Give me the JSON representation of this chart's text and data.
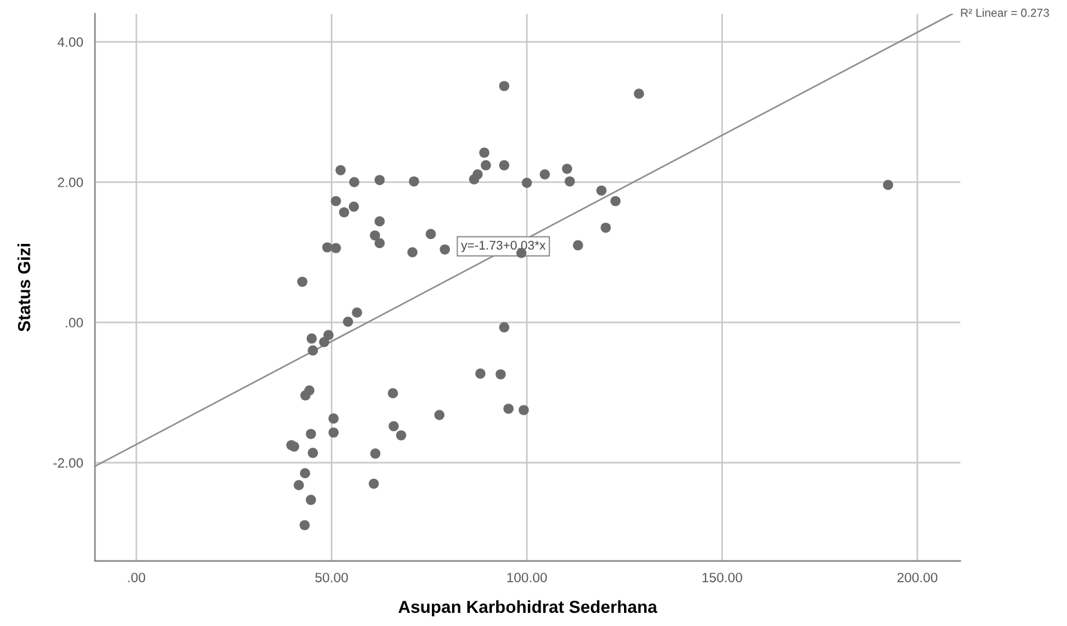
{
  "chart_data": {
    "type": "scatter",
    "xlabel": "Asupan Karbohidrat Sederhana",
    "ylabel": "Status Gizi",
    "xlim": [
      -10.6,
      211
    ],
    "ylim": [
      -3.4,
      4.4
    ],
    "xticks": [
      {
        "value": 0,
        "label": ".00"
      },
      {
        "value": 50,
        "label": "50.00"
      },
      {
        "value": 100,
        "label": "100.00"
      },
      {
        "value": 150,
        "label": "150.00"
      },
      {
        "value": 200,
        "label": "200.00"
      }
    ],
    "yticks": [
      {
        "value": -2,
        "label": "-2.00"
      },
      {
        "value": 0,
        "label": ".00"
      },
      {
        "value": 2,
        "label": "2.00"
      },
      {
        "value": 4,
        "label": "4.00"
      }
    ],
    "grid": true,
    "series": [
      {
        "marker": "circle",
        "color": "#6b6b6b",
        "x": [
          94.2,
          89.1,
          89.5,
          86.5,
          87.4,
          94.2,
          100.0,
          104.6,
          52.3,
          55.8,
          62.3,
          71.1,
          51.1,
          53.2,
          55.7,
          62.3,
          61.1,
          62.3,
          48.9,
          51.1,
          70.7,
          75.4,
          79.0,
          98.6,
          42.5,
          54.2,
          56.5,
          44.9,
          45.2,
          48.1,
          49.2,
          94.2,
          88.1,
          93.3,
          95.3,
          99.2,
          43.3,
          44.3,
          65.7,
          77.6,
          50.5,
          50.5,
          65.9,
          67.8,
          39.7,
          40.4,
          44.7,
          45.2,
          61.2,
          43.2,
          41.6,
          44.7,
          60.8,
          43.1,
          110.3,
          111.0,
          119.1,
          122.7,
          120.2,
          113.1,
          128.7,
          192.5
        ],
        "values": [
          3.37,
          2.42,
          2.24,
          2.04,
          2.11,
          2.24,
          1.99,
          2.11,
          2.17,
          2.0,
          2.03,
          2.01,
          1.73,
          1.57,
          1.65,
          1.44,
          1.24,
          1.13,
          1.07,
          1.06,
          1.0,
          1.26,
          1.04,
          0.99,
          0.58,
          0.01,
          0.14,
          -0.23,
          -0.4,
          -0.28,
          -0.18,
          -0.07,
          -0.73,
          -0.74,
          -1.23,
          -1.25,
          -1.04,
          -0.97,
          -1.01,
          -1.32,
          -1.37,
          -1.57,
          -1.48,
          -1.61,
          -1.75,
          -1.77,
          -1.59,
          -1.86,
          -1.87,
          -2.15,
          -2.32,
          -2.53,
          -2.3,
          -2.89,
          2.19,
          2.01,
          1.88,
          1.73,
          1.35,
          1.1,
          3.26,
          1.96
        ]
      },
      {
        "type": "line",
        "color": "#8c8c8c",
        "x": [
          -10.6,
          209
        ],
        "values": [
          -2.05,
          4.4
        ]
      }
    ],
    "annotations": [
      "y=-1.73+0.03*x",
      {
        "text": "R² Linear = 0.273",
        "x": 209,
        "y": 4.4
      }
    ]
  }
}
